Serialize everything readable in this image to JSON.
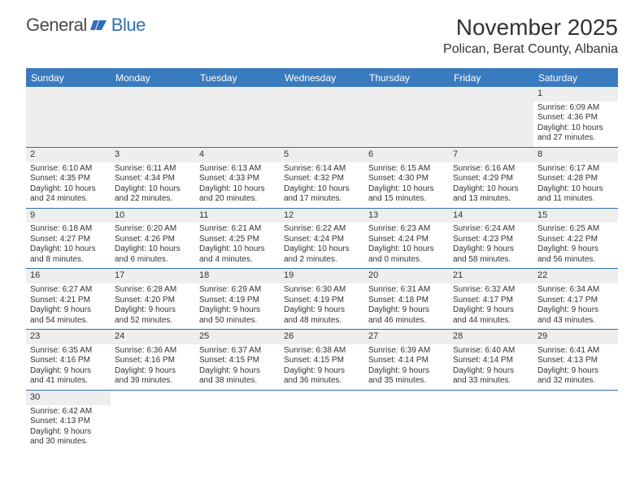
{
  "logo": {
    "textA": "General",
    "textB": "Blue"
  },
  "title": "November 2025",
  "location": "Polican, Berat County, Albania",
  "colors": {
    "header_bg": "#3a7bbf",
    "header_text": "#ffffff",
    "border": "#2f6fb5",
    "daynum_bg": "#eeeeee",
    "empty_bg": "#eeeeee",
    "text": "#333333"
  },
  "day_labels": [
    "Sunday",
    "Monday",
    "Tuesday",
    "Wednesday",
    "Thursday",
    "Friday",
    "Saturday"
  ],
  "weeks": [
    [
      {
        "empty": true
      },
      {
        "empty": true
      },
      {
        "empty": true
      },
      {
        "empty": true
      },
      {
        "empty": true
      },
      {
        "empty": true
      },
      {
        "n": "1",
        "sr": "Sunrise: 6:09 AM",
        "ss": "Sunset: 4:36 PM",
        "d1": "Daylight: 10 hours",
        "d2": "and 27 minutes."
      }
    ],
    [
      {
        "n": "2",
        "sr": "Sunrise: 6:10 AM",
        "ss": "Sunset: 4:35 PM",
        "d1": "Daylight: 10 hours",
        "d2": "and 24 minutes."
      },
      {
        "n": "3",
        "sr": "Sunrise: 6:11 AM",
        "ss": "Sunset: 4:34 PM",
        "d1": "Daylight: 10 hours",
        "d2": "and 22 minutes."
      },
      {
        "n": "4",
        "sr": "Sunrise: 6:13 AM",
        "ss": "Sunset: 4:33 PM",
        "d1": "Daylight: 10 hours",
        "d2": "and 20 minutes."
      },
      {
        "n": "5",
        "sr": "Sunrise: 6:14 AM",
        "ss": "Sunset: 4:32 PM",
        "d1": "Daylight: 10 hours",
        "d2": "and 17 minutes."
      },
      {
        "n": "6",
        "sr": "Sunrise: 6:15 AM",
        "ss": "Sunset: 4:30 PM",
        "d1": "Daylight: 10 hours",
        "d2": "and 15 minutes."
      },
      {
        "n": "7",
        "sr": "Sunrise: 6:16 AM",
        "ss": "Sunset: 4:29 PM",
        "d1": "Daylight: 10 hours",
        "d2": "and 13 minutes."
      },
      {
        "n": "8",
        "sr": "Sunrise: 6:17 AM",
        "ss": "Sunset: 4:28 PM",
        "d1": "Daylight: 10 hours",
        "d2": "and 11 minutes."
      }
    ],
    [
      {
        "n": "9",
        "sr": "Sunrise: 6:18 AM",
        "ss": "Sunset: 4:27 PM",
        "d1": "Daylight: 10 hours",
        "d2": "and 8 minutes."
      },
      {
        "n": "10",
        "sr": "Sunrise: 6:20 AM",
        "ss": "Sunset: 4:26 PM",
        "d1": "Daylight: 10 hours",
        "d2": "and 6 minutes."
      },
      {
        "n": "11",
        "sr": "Sunrise: 6:21 AM",
        "ss": "Sunset: 4:25 PM",
        "d1": "Daylight: 10 hours",
        "d2": "and 4 minutes."
      },
      {
        "n": "12",
        "sr": "Sunrise: 6:22 AM",
        "ss": "Sunset: 4:24 PM",
        "d1": "Daylight: 10 hours",
        "d2": "and 2 minutes."
      },
      {
        "n": "13",
        "sr": "Sunrise: 6:23 AM",
        "ss": "Sunset: 4:24 PM",
        "d1": "Daylight: 10 hours",
        "d2": "and 0 minutes."
      },
      {
        "n": "14",
        "sr": "Sunrise: 6:24 AM",
        "ss": "Sunset: 4:23 PM",
        "d1": "Daylight: 9 hours",
        "d2": "and 58 minutes."
      },
      {
        "n": "15",
        "sr": "Sunrise: 6:25 AM",
        "ss": "Sunset: 4:22 PM",
        "d1": "Daylight: 9 hours",
        "d2": "and 56 minutes."
      }
    ],
    [
      {
        "n": "16",
        "sr": "Sunrise: 6:27 AM",
        "ss": "Sunset: 4:21 PM",
        "d1": "Daylight: 9 hours",
        "d2": "and 54 minutes."
      },
      {
        "n": "17",
        "sr": "Sunrise: 6:28 AM",
        "ss": "Sunset: 4:20 PM",
        "d1": "Daylight: 9 hours",
        "d2": "and 52 minutes."
      },
      {
        "n": "18",
        "sr": "Sunrise: 6:29 AM",
        "ss": "Sunset: 4:19 PM",
        "d1": "Daylight: 9 hours",
        "d2": "and 50 minutes."
      },
      {
        "n": "19",
        "sr": "Sunrise: 6:30 AM",
        "ss": "Sunset: 4:19 PM",
        "d1": "Daylight: 9 hours",
        "d2": "and 48 minutes."
      },
      {
        "n": "20",
        "sr": "Sunrise: 6:31 AM",
        "ss": "Sunset: 4:18 PM",
        "d1": "Daylight: 9 hours",
        "d2": "and 46 minutes."
      },
      {
        "n": "21",
        "sr": "Sunrise: 6:32 AM",
        "ss": "Sunset: 4:17 PM",
        "d1": "Daylight: 9 hours",
        "d2": "and 44 minutes."
      },
      {
        "n": "22",
        "sr": "Sunrise: 6:34 AM",
        "ss": "Sunset: 4:17 PM",
        "d1": "Daylight: 9 hours",
        "d2": "and 43 minutes."
      }
    ],
    [
      {
        "n": "23",
        "sr": "Sunrise: 6:35 AM",
        "ss": "Sunset: 4:16 PM",
        "d1": "Daylight: 9 hours",
        "d2": "and 41 minutes."
      },
      {
        "n": "24",
        "sr": "Sunrise: 6:36 AM",
        "ss": "Sunset: 4:16 PM",
        "d1": "Daylight: 9 hours",
        "d2": "and 39 minutes."
      },
      {
        "n": "25",
        "sr": "Sunrise: 6:37 AM",
        "ss": "Sunset: 4:15 PM",
        "d1": "Daylight: 9 hours",
        "d2": "and 38 minutes."
      },
      {
        "n": "26",
        "sr": "Sunrise: 6:38 AM",
        "ss": "Sunset: 4:15 PM",
        "d1": "Daylight: 9 hours",
        "d2": "and 36 minutes."
      },
      {
        "n": "27",
        "sr": "Sunrise: 6:39 AM",
        "ss": "Sunset: 4:14 PM",
        "d1": "Daylight: 9 hours",
        "d2": "and 35 minutes."
      },
      {
        "n": "28",
        "sr": "Sunrise: 6:40 AM",
        "ss": "Sunset: 4:14 PM",
        "d1": "Daylight: 9 hours",
        "d2": "and 33 minutes."
      },
      {
        "n": "29",
        "sr": "Sunrise: 6:41 AM",
        "ss": "Sunset: 4:13 PM",
        "d1": "Daylight: 9 hours",
        "d2": "and 32 minutes."
      }
    ],
    [
      {
        "n": "30",
        "sr": "Sunrise: 6:42 AM",
        "ss": "Sunset: 4:13 PM",
        "d1": "Daylight: 9 hours",
        "d2": "and 30 minutes."
      },
      {
        "blank": true
      },
      {
        "blank": true
      },
      {
        "blank": true
      },
      {
        "blank": true
      },
      {
        "blank": true
      },
      {
        "blank": true
      }
    ]
  ]
}
